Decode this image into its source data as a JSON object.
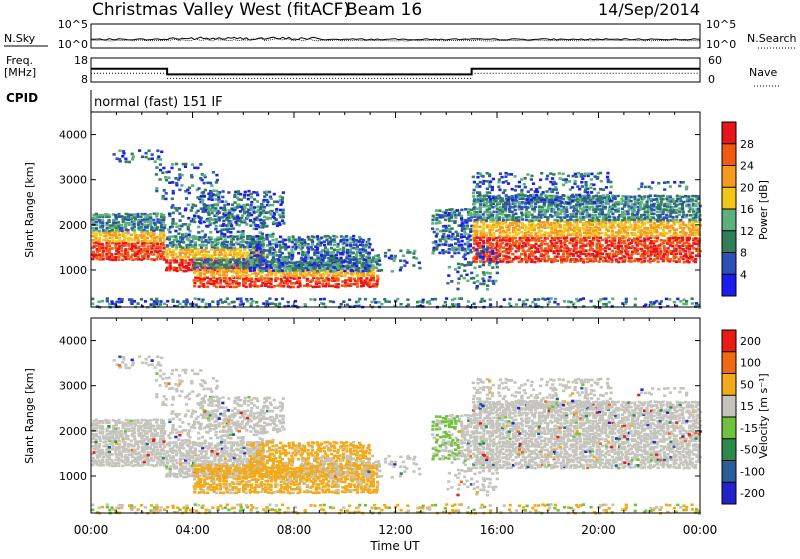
{
  "header": {
    "title": "Christmas Valley West (fitACF)",
    "beam": "Beam 16",
    "date": "14/Sep/2014"
  },
  "noise_panel": {
    "left_label": "N.Sky",
    "right_label": "N.Search",
    "ticks_left": [
      "10^5",
      "10^0"
    ],
    "ticks_right": [
      "10^5",
      "10^0"
    ]
  },
  "freq_panel": {
    "left_label_1": "Freq.",
    "left_label_2": "[MHz]",
    "right_label": "Nave",
    "ticks_left": [
      "18",
      "8"
    ],
    "ticks_right": [
      "60",
      "0"
    ],
    "freq_levels": [
      13.5,
      11.2
    ],
    "freq_switch_hours": [
      3.0,
      15.0
    ]
  },
  "cpid": {
    "label": "CPID",
    "mode": "normal (fast) 151 IF"
  },
  "chart_data": [
    {
      "type": "heatmap",
      "name": "power",
      "ylabel": "Slant Range [km]",
      "xlabel": "",
      "ylim": [
        180,
        4500
      ],
      "xlim_hours": [
        0,
        24
      ],
      "yticks": [
        1000,
        2000,
        3000,
        4000
      ],
      "colorbar": {
        "label": "Power [dB]",
        "range": [
          0,
          32
        ],
        "ticks": [
          4,
          8,
          12,
          16,
          20,
          24,
          28
        ],
        "colors": [
          "#1c1cf0",
          "#2c4fb8",
          "#2f7f58",
          "#5cb07e",
          "#f2c818",
          "#f49a1c",
          "#f05a12",
          "#e8141b"
        ]
      }
    },
    {
      "type": "heatmap",
      "name": "velocity",
      "ylabel": "Slant Range [km]",
      "xlabel": "Time UT",
      "ylim": [
        180,
        4500
      ],
      "xlim_hours": [
        0,
        24
      ],
      "yticks": [
        1000,
        2000,
        3000,
        4000
      ],
      "xtick_labels": [
        "00:00",
        "04:00",
        "08:00",
        "12:00",
        "16:00",
        "20:00",
        "00:00"
      ],
      "colorbar": {
        "label": "Velocity [m s⁻¹]",
        "ticks": [
          "200",
          "100",
          "50",
          "15",
          "-15",
          "-50",
          "-100",
          "-200"
        ],
        "colors": [
          "#2222cc",
          "#2a5e9a",
          "#2c8a4e",
          "#70c23c",
          "#c4c4bc",
          "#f1aa1a",
          "#f06a14",
          "#e81c14"
        ]
      }
    }
  ]
}
